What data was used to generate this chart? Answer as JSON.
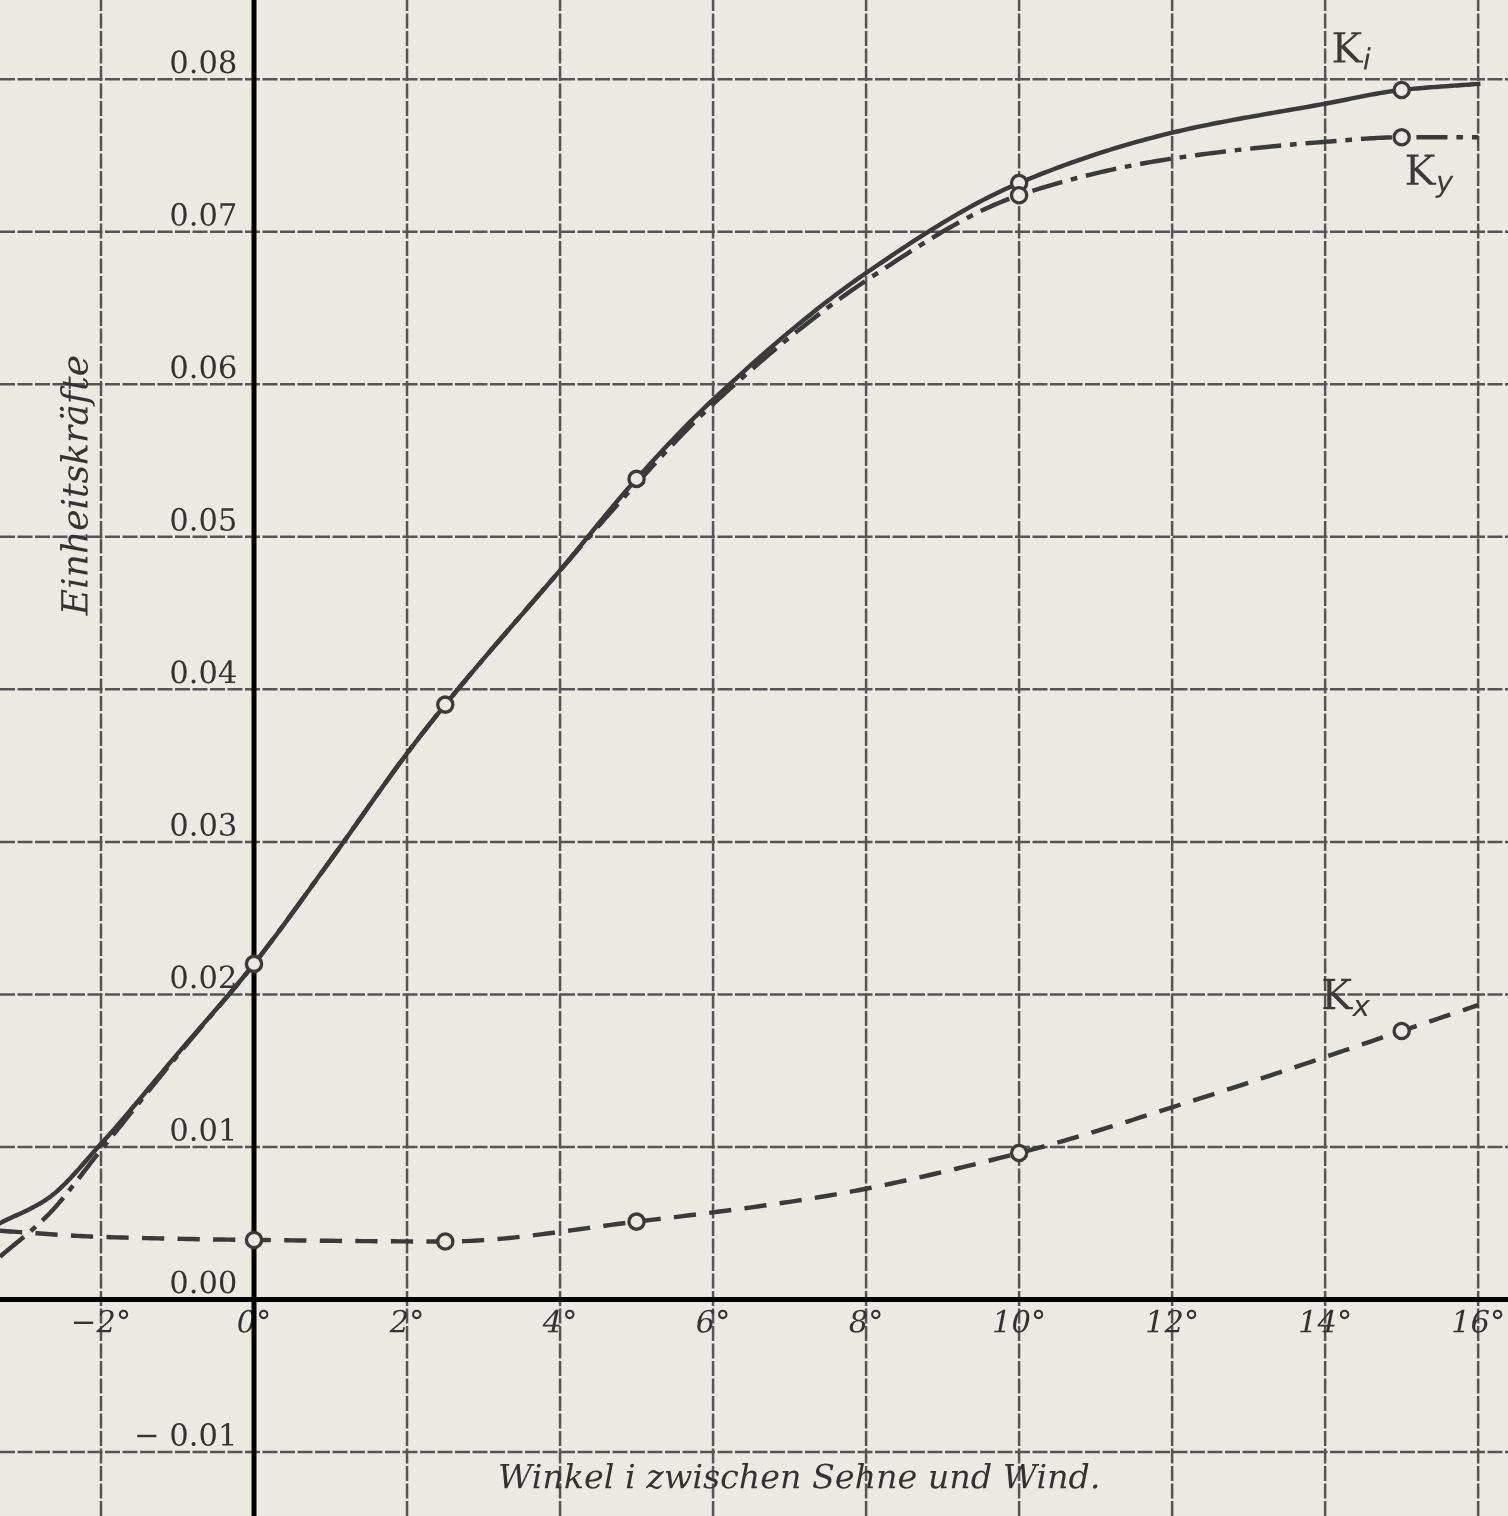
{
  "chart_data": {
    "type": "line",
    "xlabel": "Winkel i zwischen Sehne und Wind.",
    "ylabel": "Einheitskräfte",
    "xlim": [
      -3.32,
      16.39
    ],
    "ylim": [
      -0.0142,
      0.0852
    ],
    "xticks": [
      {
        "value": -2,
        "label": "−2°"
      },
      {
        "value": 0,
        "label": "0°"
      },
      {
        "value": 2,
        "label": "2°"
      },
      {
        "value": 4,
        "label": "4°"
      },
      {
        "value": 6,
        "label": "6°"
      },
      {
        "value": 8,
        "label": "8°"
      },
      {
        "value": 10,
        "label": "10°"
      },
      {
        "value": 12,
        "label": "12°"
      },
      {
        "value": 14,
        "label": "14°"
      },
      {
        "value": 16,
        "label": "16°"
      }
    ],
    "yticks": [
      {
        "value": -0.01,
        "label": "− 0.01"
      },
      {
        "value": 0.0,
        "label": "0.00"
      },
      0.01,
      0.02,
      0.03,
      0.04,
      0.05,
      0.06,
      0.07,
      0.08
    ],
    "grid": true,
    "series": [
      {
        "name": "K$_{i}$",
        "color": "#3a3a3a",
        "line_style": "solid",
        "marker": "none",
        "x": [
          -3.32,
          -2.7,
          -2,
          -1,
          0,
          1,
          2,
          2.5,
          3,
          4,
          5,
          6,
          8,
          10,
          12,
          14,
          15,
          16
        ],
        "values": [
          0.005,
          0.0066,
          0.0102,
          0.0161,
          0.022,
          0.0288,
          0.0358,
          0.039,
          0.042,
          0.0478,
          0.0538,
          0.059,
          0.0673,
          0.0732,
          0.0765,
          0.0784,
          0.0793,
          0.0797
        ]
      },
      {
        "name": "K$_{y}$",
        "color": "#3a3a3a",
        "line_style": "dashdot",
        "marker": "none",
        "x": [
          -3.32,
          -2.7,
          -2,
          -1,
          0,
          1,
          2,
          2.5,
          3,
          4,
          5,
          6,
          8,
          10,
          12,
          14,
          15,
          16
        ],
        "values": [
          0.0028,
          0.0055,
          0.0098,
          0.016,
          0.022,
          0.0288,
          0.0358,
          0.039,
          0.042,
          0.0478,
          0.0535,
          0.0587,
          0.0668,
          0.0724,
          0.0748,
          0.0759,
          0.0762,
          0.0762
        ]
      },
      {
        "name": "K$_{x}$",
        "color": "#3a3a3a",
        "line_style": "dashed",
        "marker": "none",
        "x": [
          -3.32,
          -2,
          0,
          2.5,
          5,
          7.5,
          10,
          12.5,
          15,
          16
        ],
        "values": [
          0.0045,
          0.0041,
          0.0039,
          0.0038,
          0.0051,
          0.0068,
          0.0096,
          0.0134,
          0.0176,
          0.0193
        ]
      },
      {
        "type": "scatter",
        "color": "#3a3a3a",
        "marker": "circle",
        "x": [
          0,
          2.5,
          5,
          10,
          15
        ],
        "values": [
          0.022,
          0.039,
          0.0538,
          0.0732,
          0.0793
        ]
      },
      {
        "type": "scatter",
        "color": "#3a3a3a",
        "marker": "circle",
        "x": [
          10,
          15
        ],
        "values": [
          0.0724,
          0.0762
        ]
      },
      {
        "type": "scatter",
        "color": "#3a3a3a",
        "marker": "circle",
        "x": [
          0,
          2.5,
          5,
          10,
          15
        ],
        "values": [
          0.0039,
          0.0038,
          0.0051,
          0.0096,
          0.0176
        ]
      }
    ]
  }
}
